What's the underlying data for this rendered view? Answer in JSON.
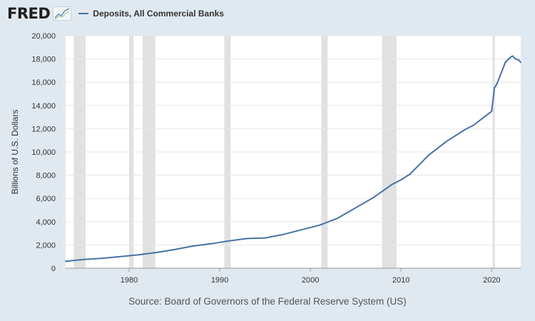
{
  "brand": {
    "logo_text": "FRED"
  },
  "colors": {
    "background": "#e1e9f0",
    "plot_background": "#ffffff",
    "line": "#4572a7",
    "recession": "#e1e1e1",
    "grid": "#e6e6e6"
  },
  "icons": {
    "logo": "line-chart-icon"
  },
  "source": "Source: Board of Governors of the Federal Reserve System (US)",
  "chart_data": {
    "type": "line",
    "title": "",
    "xlabel": "",
    "ylabel": "Billions of U.S. Dollars",
    "xlim": [
      1973,
      2023.2
    ],
    "ylim": [
      0,
      20000
    ],
    "x_ticks": [
      1980,
      1990,
      2000,
      2010,
      2020
    ],
    "y_ticks": [
      0,
      2000,
      4000,
      6000,
      8000,
      10000,
      12000,
      14000,
      16000,
      18000,
      20000
    ],
    "y_tick_labels": [
      "0",
      "2,000",
      "4,000",
      "6,000",
      "8,000",
      "10,000",
      "12,000",
      "14,000",
      "16,000",
      "18,000",
      "20,000"
    ],
    "grid": "horizontal",
    "legend_position": "top-left",
    "recession_bands": [
      [
        1973.9,
        1975.2
      ],
      [
        1980.0,
        1980.5
      ],
      [
        1981.5,
        1982.9
      ],
      [
        1990.5,
        1991.2
      ],
      [
        2001.2,
        2001.9
      ],
      [
        2007.9,
        2009.5
      ],
      [
        2020.1,
        2020.35
      ]
    ],
    "series": [
      {
        "name": "Deposits, All Commercial Banks",
        "x": [
          1973.0,
          1975.0,
          1977.0,
          1979.0,
          1981.0,
          1983.0,
          1985.0,
          1987.0,
          1989.0,
          1991.0,
          1993.0,
          1995.0,
          1997.0,
          1999.0,
          2001.0,
          2003.0,
          2005.0,
          2007.0,
          2009.0,
          2010.0,
          2011.0,
          2012.0,
          2013.0,
          2014.0,
          2015.0,
          2016.0,
          2017.0,
          2018.0,
          2019.0,
          2020.0,
          2020.3,
          2020.6,
          2021.0,
          2021.5,
          2022.0,
          2022.3,
          2022.6,
          2023.0,
          2023.2
        ],
        "values": [
          600,
          750,
          850,
          1000,
          1150,
          1350,
          1600,
          1900,
          2100,
          2350,
          2550,
          2600,
          2900,
          3300,
          3700,
          4300,
          5200,
          6100,
          7200,
          7600,
          8100,
          8900,
          9700,
          10300,
          10900,
          11400,
          11900,
          12300,
          12900,
          13500,
          15500,
          15900,
          16700,
          17700,
          18100,
          18250,
          18000,
          17900,
          17700
        ]
      }
    ]
  }
}
